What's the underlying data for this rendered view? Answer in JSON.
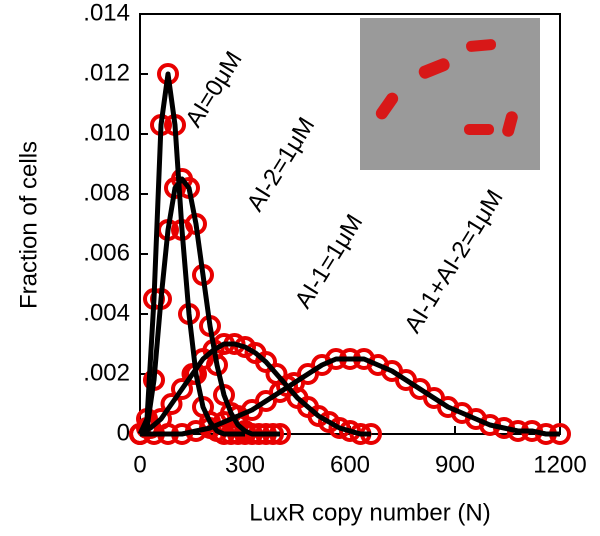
{
  "chart_data": {
    "type": "line",
    "x_label": "LuxR copy number (N)",
    "y_label": "Fraction of cells",
    "xlim": [
      0,
      1200
    ],
    "xticks": [
      0,
      300,
      600,
      900,
      1200
    ],
    "ylim": [
      0,
      0.014
    ],
    "yticks": [
      0,
      {
        "value": 0.002,
        "label": ".002"
      },
      {
        "value": 0.004,
        "label": ".004"
      },
      {
        "value": 0.006,
        "label": ".006"
      },
      {
        "value": 0.008,
        "label": ".008"
      },
      {
        "value": 0.01,
        "label": ".010"
      },
      {
        "value": 0.012,
        "label": ".012"
      },
      {
        "value": 0.014,
        "label": ".014"
      }
    ],
    "series": [
      {
        "name": "AI=0μM",
        "color": "#e80000",
        "line_color": "#000000",
        "x": [
          0,
          20,
          40,
          60,
          80,
          100,
          120,
          140,
          160,
          180,
          200,
          220,
          240,
          260,
          280,
          300
        ],
        "values": [
          0,
          0.0005,
          0.0045,
          0.0103,
          0.012,
          0.0103,
          0.0068,
          0.004,
          0.002,
          0.0009,
          0.0004,
          0.0001,
          0,
          0,
          0,
          0
        ]
      },
      {
        "name": "AI-2=1μM",
        "color": "#e80000",
        "line_color": "#000000",
        "x": [
          0,
          20,
          40,
          60,
          80,
          100,
          120,
          140,
          160,
          180,
          200,
          220,
          240,
          260,
          280,
          300,
          320,
          340,
          360,
          380,
          400
        ],
        "values": [
          0,
          0.0002,
          0.0018,
          0.0045,
          0.0068,
          0.0082,
          0.0085,
          0.0082,
          0.007,
          0.0053,
          0.0036,
          0.0023,
          0.0013,
          0.0007,
          0.0003,
          0.0001,
          0,
          0,
          0,
          0,
          0
        ]
      },
      {
        "name": "AI-1=1μM",
        "color": "#e80000",
        "line_color": "#000000",
        "x": [
          0,
          30,
          60,
          90,
          120,
          150,
          180,
          210,
          240,
          270,
          300,
          330,
          360,
          390,
          420,
          450,
          480,
          510,
          540,
          570,
          600,
          630,
          660
        ],
        "values": [
          0,
          0.0002,
          0.0005,
          0.001,
          0.0015,
          0.002,
          0.0025,
          0.0028,
          0.003,
          0.003,
          0.0029,
          0.0027,
          0.0024,
          0.002,
          0.0016,
          0.0012,
          0.0009,
          0.0006,
          0.0004,
          0.0002,
          0.0001,
          0,
          0
        ]
      },
      {
        "name": "AI-1+AI-2=1μM",
        "color": "#e80000",
        "line_color": "#000000",
        "x": [
          0,
          40,
          80,
          120,
          160,
          200,
          240,
          280,
          320,
          360,
          400,
          440,
          480,
          520,
          560,
          600,
          640,
          680,
          720,
          760,
          800,
          840,
          880,
          920,
          960,
          1000,
          1040,
          1080,
          1120,
          1160,
          1200
        ],
        "values": [
          0,
          0,
          0,
          0,
          0.0001,
          0.0002,
          0.0004,
          0.0006,
          0.0008,
          0.0011,
          0.0014,
          0.0017,
          0.002,
          0.0023,
          0.0025,
          0.0025,
          0.0025,
          0.0023,
          0.0021,
          0.0018,
          0.0015,
          0.0012,
          0.0009,
          0.0007,
          0.0005,
          0.0003,
          0.0002,
          0.0001,
          0.0001,
          0,
          0
        ]
      }
    ]
  }
}
